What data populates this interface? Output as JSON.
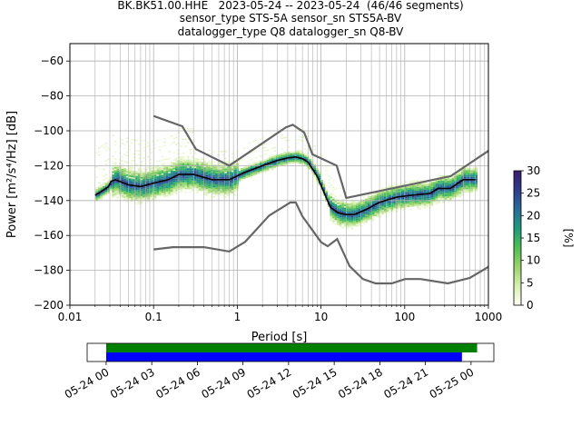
{
  "header": {
    "line1": "BK.BK51.00.HHE   2023-05-24 -- 2023-05-24  (46/46 segments)",
    "line2": "sensor_type STS-5A sensor_sn STS5A-BV",
    "line3": "datalogger_type Q8 datalogger_sn Q8-BV"
  },
  "chart_data": [
    {
      "type": "heatmap",
      "subtype": "probabilistic power spectral density",
      "xlabel": "Period [s]",
      "ylabel": "Power [m²/s⁴/Hz] [dB]",
      "x_scale": "log",
      "xlim": [
        0.01,
        1000
      ],
      "ylim": [
        -200,
        -50
      ],
      "x_ticks": [
        0.01,
        0.1,
        1,
        10,
        100,
        1000
      ],
      "x_tick_labels": [
        "0.01",
        "0.1",
        "1",
        "10",
        "100",
        "1000"
      ],
      "y_ticks": [
        -200,
        -180,
        -160,
        -140,
        -120,
        -100,
        -80,
        -60
      ],
      "y_tick_labels": [
        "−200",
        "−180",
        "−160",
        "−140",
        "−120",
        "−100",
        "−80",
        "−60"
      ],
      "grid": true,
      "colorbar": {
        "label": "[%]",
        "range": [
          0,
          30
        ],
        "ticks": [
          0,
          5,
          10,
          15,
          20,
          25,
          30
        ],
        "colormap": [
          "#fffff2",
          "#d6efb0",
          "#9ad36a",
          "#4fbf55",
          "#1f9c7a",
          "#2a6f97",
          "#2e3f8c",
          "#3a1e6e"
        ]
      },
      "series": [
        {
          "role": "mode",
          "color": "#000000",
          "points": [
            [
              0.02,
              -137
            ],
            [
              0.025,
              -134
            ],
            [
              0.029,
              -132
            ],
            [
              0.031,
              -129
            ],
            [
              0.035,
              -128
            ],
            [
              0.05,
              -131
            ],
            [
              0.07,
              -132
            ],
            [
              0.1,
              -130
            ],
            [
              0.15,
              -128
            ],
            [
              0.2,
              -125
            ],
            [
              0.3,
              -125
            ],
            [
              0.5,
              -128
            ],
            [
              0.8,
              -128
            ],
            [
              1.2,
              -124
            ],
            [
              2,
              -120
            ],
            [
              3,
              -117
            ],
            [
              4,
              -115.5
            ],
            [
              5,
              -115
            ],
            [
              6,
              -116
            ],
            [
              7,
              -118
            ],
            [
              9,
              -126
            ],
            [
              11,
              -136
            ],
            [
              13,
              -144
            ],
            [
              16,
              -147
            ],
            [
              20,
              -148
            ],
            [
              25,
              -148
            ],
            [
              35,
              -145
            ],
            [
              50,
              -141
            ],
            [
              80,
              -138
            ],
            [
              120,
              -137
            ],
            [
              200,
              -136
            ],
            [
              250,
              -133
            ],
            [
              350,
              -133
            ],
            [
              500,
              -128
            ],
            [
              700,
              -128
            ]
          ]
        },
        {
          "role": "high noise model",
          "color": "#666666",
          "points": [
            [
              0.1,
              -91.5
            ],
            [
              0.22,
              -97.4
            ],
            [
              0.32,
              -110.5
            ],
            [
              0.8,
              -120
            ],
            [
              3.8,
              -98
            ],
            [
              4.6,
              -96.5
            ],
            [
              6.3,
              -101
            ],
            [
              7.9,
              -113.5
            ],
            [
              15.4,
              -120
            ],
            [
              20,
              -138.5
            ],
            [
              354.8,
              -126
            ],
            [
              1000,
              -111.5
            ]
          ]
        },
        {
          "role": "low noise model",
          "color": "#666666",
          "points": [
            [
              0.1,
              -168
            ],
            [
              0.17,
              -166.7
            ],
            [
              0.4,
              -166.7
            ],
            [
              0.8,
              -169.2
            ],
            [
              1.24,
              -163.7
            ],
            [
              2.4,
              -148.6
            ],
            [
              4.3,
              -141.1
            ],
            [
              5,
              -141.1
            ],
            [
              6,
              -149
            ],
            [
              10,
              -163.8
            ],
            [
              12,
              -166.2
            ],
            [
              15.6,
              -162.1
            ],
            [
              21.9,
              -177.5
            ],
            [
              31.6,
              -185
            ],
            [
              45,
              -187.5
            ],
            [
              70,
              -187.5
            ],
            [
              101,
              -185
            ],
            [
              154,
              -185
            ],
            [
              328,
              -187.5
            ],
            [
              600,
              -184.4
            ],
            [
              1000,
              -178
            ]
          ]
        }
      ]
    },
    {
      "type": "timeline",
      "x_tick_labels": [
        "05-24 00",
        "05-24 03",
        "05-24 06",
        "05-24 09",
        "05-24 12",
        "05-24 15",
        "05-24 18",
        "05-24 21",
        "05-25 00"
      ],
      "x_range_hours": [
        -1.25,
        25.5
      ],
      "bars": [
        {
          "role": "data availability",
          "color": "#008000",
          "start_hour": 0,
          "end_hour": 24.4
        },
        {
          "role": "used for psd",
          "color": "#0000ff",
          "start_hour": 0,
          "end_hour": 23.4
        }
      ]
    }
  ]
}
